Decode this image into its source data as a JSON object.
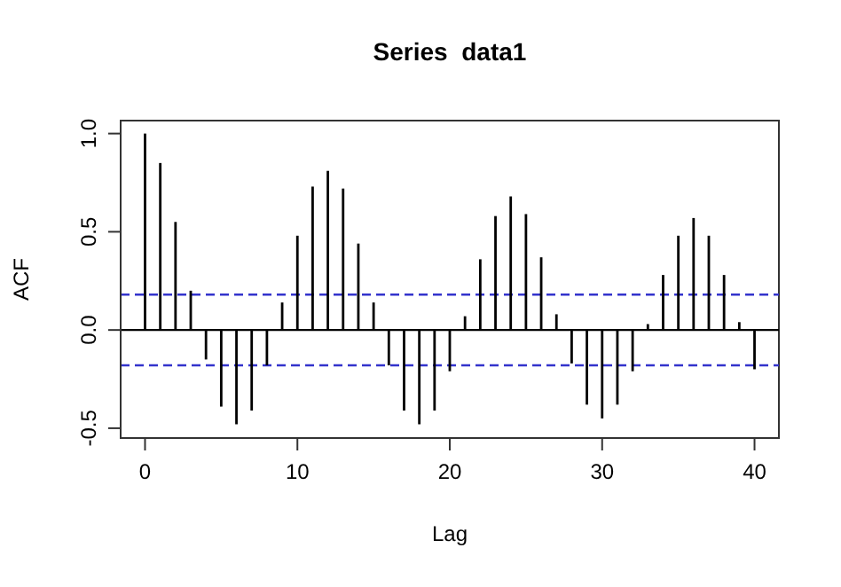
{
  "chart_data": {
    "type": "bar",
    "title": "Series  data1",
    "xlabel": "Lag",
    "ylabel": "ACF",
    "x": [
      0,
      1,
      2,
      3,
      4,
      5,
      6,
      7,
      8,
      9,
      10,
      11,
      12,
      13,
      14,
      15,
      16,
      17,
      18,
      19,
      20,
      21,
      22,
      23,
      24,
      25,
      26,
      27,
      28,
      29,
      30,
      31,
      32,
      33,
      34,
      35,
      36,
      37,
      38,
      39,
      40
    ],
    "values": [
      1.0,
      0.85,
      0.55,
      0.2,
      -0.15,
      -0.39,
      -0.48,
      -0.41,
      -0.18,
      0.14,
      0.48,
      0.73,
      0.81,
      0.72,
      0.44,
      0.14,
      -0.18,
      -0.41,
      -0.48,
      -0.41,
      -0.21,
      0.07,
      0.36,
      0.58,
      0.68,
      0.59,
      0.37,
      0.08,
      -0.17,
      -0.38,
      -0.45,
      -0.38,
      -0.21,
      0.03,
      0.28,
      0.48,
      0.57,
      0.48,
      0.28,
      0.04,
      -0.2
    ],
    "color": "#000000",
    "xlim": [
      -1.6,
      41.6
    ],
    "xticks": [
      0,
      10,
      20,
      30,
      40
    ],
    "ylim": [
      -0.55,
      1.066
    ],
    "yticks": [
      {
        "value": -0.5,
        "label": "-0.5"
      },
      {
        "value": 0,
        "label": "0.0"
      },
      {
        "value": 0.5,
        "label": "0.5"
      },
      {
        "value": 1,
        "label": "1.0"
      }
    ],
    "ref_lines": [
      {
        "axis": "y",
        "value": 0,
        "color": "#000000",
        "line_style": "solid"
      },
      {
        "axis": "y",
        "value": 0.18,
        "color": "#3333cc",
        "line_style": "dashed"
      },
      {
        "axis": "y",
        "value": -0.18,
        "color": "#3333cc",
        "line_style": "dashed"
      }
    ],
    "grid": false
  }
}
